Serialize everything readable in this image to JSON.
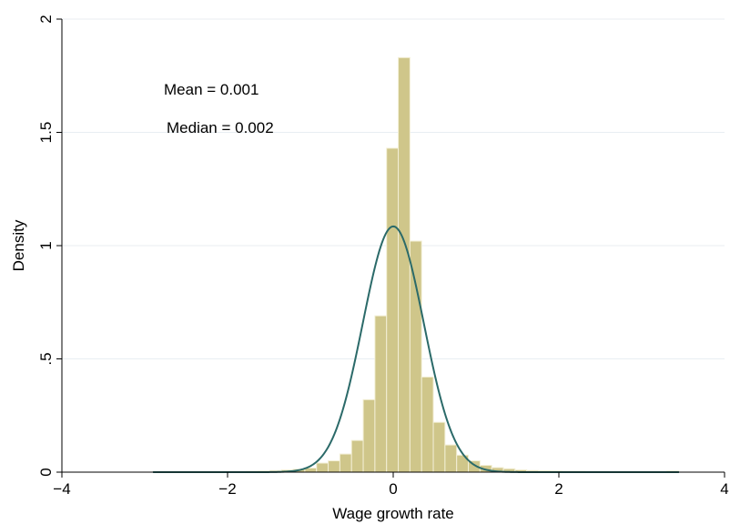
{
  "chart_data": {
    "type": "bar",
    "title": "",
    "xlabel": "Wage growth rate",
    "ylabel": "Density",
    "xlim": [
      -4,
      4
    ],
    "ylim": [
      0,
      2
    ],
    "x_ticks": [
      {
        "value": -4,
        "label": "−4"
      },
      {
        "value": -2,
        "label": "−2"
      },
      {
        "value": 0,
        "label": "0"
      },
      {
        "value": 2,
        "label": "2"
      },
      {
        "value": 4,
        "label": "4"
      }
    ],
    "y_ticks": [
      {
        "value": 0,
        "label": "0"
      },
      {
        "value": 0.5,
        "label": ".5"
      },
      {
        "value": 1,
        "label": "1"
      },
      {
        "value": 1.5,
        "label": "1.5"
      },
      {
        "value": 2,
        "label": "2"
      }
    ],
    "grid": "horizontal",
    "bar_color": "#cfc68a",
    "bar_edge_color": "#f3efd6",
    "curve_color": "#2b6a69",
    "bin_width": 0.141,
    "histogram": [
      {
        "x_left": -2.9,
        "x_right": -2.759,
        "density": 0.002
      },
      {
        "x_left": -2.759,
        "x_right": -2.618,
        "density": 0.002
      },
      {
        "x_left": -2.618,
        "x_right": -2.477,
        "density": 0.002
      },
      {
        "x_left": -2.477,
        "x_right": -2.336,
        "density": 0.002
      },
      {
        "x_left": -2.336,
        "x_right": -2.195,
        "density": 0.002
      },
      {
        "x_left": -2.195,
        "x_right": -2.054,
        "density": 0.002
      },
      {
        "x_left": -2.054,
        "x_right": -1.913,
        "density": 0.003
      },
      {
        "x_left": -1.913,
        "x_right": -1.772,
        "density": 0.003
      },
      {
        "x_left": -1.772,
        "x_right": -1.631,
        "density": 0.004
      },
      {
        "x_left": -1.631,
        "x_right": -1.49,
        "density": 0.005
      },
      {
        "x_left": -1.49,
        "x_right": -1.349,
        "density": 0.007
      },
      {
        "x_left": -1.349,
        "x_right": -1.208,
        "density": 0.01
      },
      {
        "x_left": -1.208,
        "x_right": -1.067,
        "density": 0.013
      },
      {
        "x_left": -1.067,
        "x_right": -0.926,
        "density": 0.018
      },
      {
        "x_left": -0.926,
        "x_right": -0.785,
        "density": 0.04
      },
      {
        "x_left": -0.785,
        "x_right": -0.644,
        "density": 0.05
      },
      {
        "x_left": -0.644,
        "x_right": -0.503,
        "density": 0.08
      },
      {
        "x_left": -0.503,
        "x_right": -0.362,
        "density": 0.14
      },
      {
        "x_left": -0.362,
        "x_right": -0.221,
        "density": 0.32
      },
      {
        "x_left": -0.221,
        "x_right": -0.08,
        "density": 0.69
      },
      {
        "x_left": -0.08,
        "x_right": 0.061,
        "density": 1.43
      },
      {
        "x_left": 0.061,
        "x_right": 0.202,
        "density": 1.83
      },
      {
        "x_left": 0.202,
        "x_right": 0.343,
        "density": 1.02
      },
      {
        "x_left": 0.343,
        "x_right": 0.484,
        "density": 0.42
      },
      {
        "x_left": 0.484,
        "x_right": 0.625,
        "density": 0.22
      },
      {
        "x_left": 0.625,
        "x_right": 0.766,
        "density": 0.12
      },
      {
        "x_left": 0.766,
        "x_right": 0.907,
        "density": 0.075
      },
      {
        "x_left": 0.907,
        "x_right": 1.048,
        "density": 0.05
      },
      {
        "x_left": 1.048,
        "x_right": 1.189,
        "density": 0.03
      },
      {
        "x_left": 1.189,
        "x_right": 1.33,
        "density": 0.02
      },
      {
        "x_left": 1.33,
        "x_right": 1.471,
        "density": 0.015
      },
      {
        "x_left": 1.471,
        "x_right": 1.612,
        "density": 0.01
      },
      {
        "x_left": 1.612,
        "x_right": 1.753,
        "density": 0.007
      },
      {
        "x_left": 1.753,
        "x_right": 1.894,
        "density": 0.006
      },
      {
        "x_left": 1.894,
        "x_right": 2.035,
        "density": 0.005
      },
      {
        "x_left": 2.035,
        "x_right": 2.176,
        "density": 0.004
      },
      {
        "x_left": 2.176,
        "x_right": 2.317,
        "density": 0.004
      },
      {
        "x_left": 2.317,
        "x_right": 2.458,
        "density": 0.003
      },
      {
        "x_left": 2.458,
        "x_right": 2.599,
        "density": 0.003
      },
      {
        "x_left": 2.599,
        "x_right": 2.74,
        "density": 0.002
      },
      {
        "x_left": 2.74,
        "x_right": 2.881,
        "density": 0.002
      },
      {
        "x_left": 2.881,
        "x_right": 3.022,
        "density": 0.002
      },
      {
        "x_left": 3.022,
        "x_right": 3.163,
        "density": 0.002
      },
      {
        "x_left": 3.163,
        "x_right": 3.304,
        "density": 0.002
      },
      {
        "x_left": 3.304,
        "x_right": 3.445,
        "density": 0.005
      }
    ],
    "normal_curve": {
      "mean": 0.001,
      "sd": 0.368,
      "peak_density": 1.085
    },
    "annotations": [
      "Mean = 0.001",
      "Median = 0.002"
    ]
  }
}
